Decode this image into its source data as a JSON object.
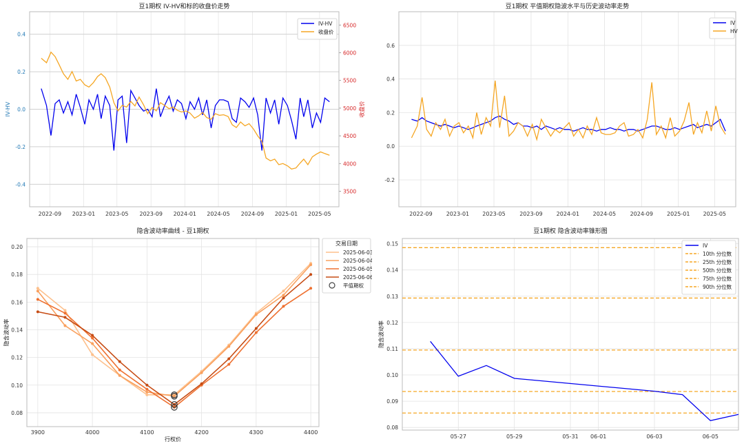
{
  "chart_data": [
    {
      "type": "line",
      "title": "豆1期权 IV-HV和标的收盘价走势",
      "xlabel": "",
      "ylabel": "IV-HV",
      "y2label": "收盘价",
      "x_ticks": [
        "2022-09",
        "2023-01",
        "2023-05",
        "2023-09",
        "2024-01",
        "2024-05",
        "2024-09",
        "2025-01",
        "2025-05"
      ],
      "ylim": [
        -0.52,
        0.52
      ],
      "y_ticks": [
        "-0.4",
        "-0.2",
        "0.0",
        "0.2",
        "0.4"
      ],
      "y2lim": [
        3220,
        6740
      ],
      "y2_ticks": [
        "3500",
        "4000",
        "4500",
        "5000",
        "5500",
        "6000",
        "6500"
      ],
      "grid": true,
      "legend": "top-right",
      "series": [
        {
          "name": "IV-HV",
          "axis": "left",
          "color": "#0000ee",
          "x": [
            "2022-08-01",
            "2022-08-20",
            "2022-09-05",
            "2022-09-20",
            "2022-10-05",
            "2022-10-20",
            "2022-11-05",
            "2022-11-20",
            "2022-12-05",
            "2022-12-20",
            "2023-01-05",
            "2023-01-20",
            "2023-02-05",
            "2023-02-20",
            "2023-03-05",
            "2023-03-20",
            "2023-04-05",
            "2023-04-20",
            "2023-05-05",
            "2023-05-20",
            "2023-06-05",
            "2023-06-20",
            "2023-07-05",
            "2023-07-20",
            "2023-08-05",
            "2023-08-20",
            "2023-09-05",
            "2023-09-20",
            "2023-10-05",
            "2023-10-20",
            "2023-11-05",
            "2023-11-20",
            "2023-12-05",
            "2023-12-20",
            "2024-01-05",
            "2024-01-20",
            "2024-02-05",
            "2024-02-20",
            "2024-03-05",
            "2024-03-20",
            "2024-04-05",
            "2024-04-20",
            "2024-05-05",
            "2024-05-20",
            "2024-06-05",
            "2024-06-20",
            "2024-07-05",
            "2024-07-20",
            "2024-08-05",
            "2024-08-20",
            "2024-09-05",
            "2024-09-20",
            "2024-10-05",
            "2024-10-20",
            "2024-11-05",
            "2024-11-20",
            "2024-12-05",
            "2024-12-20",
            "2025-01-05",
            "2025-01-20",
            "2025-02-05",
            "2025-02-20",
            "2025-03-05",
            "2025-03-20",
            "2025-04-05",
            "2025-04-20",
            "2025-05-05",
            "2025-05-20",
            "2025-06-06"
          ],
          "values": [
            0.11,
            0.02,
            -0.14,
            0.03,
            0.05,
            -0.02,
            0.04,
            -0.03,
            0.08,
            0.01,
            -0.08,
            0.05,
            0.0,
            0.08,
            -0.05,
            0.07,
            0.02,
            -0.22,
            0.05,
            0.07,
            -0.18,
            0.1,
            0.06,
            0.02,
            -0.01,
            0.0,
            -0.04,
            0.11,
            -0.04,
            0.02,
            0.07,
            -0.01,
            0.05,
            0.03,
            -0.05,
            0.04,
            0.0,
            0.06,
            -0.03,
            0.05,
            -0.1,
            0.02,
            0.05,
            0.05,
            0.04,
            -0.05,
            -0.07,
            0.06,
            0.04,
            0.01,
            0.06,
            -0.03,
            -0.22,
            0.06,
            -0.02,
            0.05,
            -0.08,
            0.06,
            0.02,
            -0.06,
            -0.16,
            0.06,
            -0.04,
            0.05,
            -0.1,
            -0.02,
            -0.07,
            0.06,
            0.04
          ]
        },
        {
          "name": "收盘价",
          "axis": "right",
          "color": "#f5a623",
          "x": [
            "2022-08-01",
            "2022-08-20",
            "2022-09-05",
            "2022-09-20",
            "2022-10-05",
            "2022-10-20",
            "2022-11-05",
            "2022-11-20",
            "2022-12-05",
            "2022-12-20",
            "2023-01-05",
            "2023-01-20",
            "2023-02-05",
            "2023-02-20",
            "2023-03-05",
            "2023-03-20",
            "2023-04-05",
            "2023-04-20",
            "2023-05-05",
            "2023-05-20",
            "2023-06-05",
            "2023-06-20",
            "2023-07-05",
            "2023-07-20",
            "2023-08-05",
            "2023-08-20",
            "2023-09-05",
            "2023-09-20",
            "2023-10-05",
            "2023-10-20",
            "2023-11-05",
            "2023-11-20",
            "2023-12-05",
            "2023-12-20",
            "2024-01-05",
            "2024-01-20",
            "2024-02-05",
            "2024-02-20",
            "2024-03-05",
            "2024-03-20",
            "2024-04-05",
            "2024-04-20",
            "2024-05-05",
            "2024-05-20",
            "2024-06-05",
            "2024-06-20",
            "2024-07-05",
            "2024-07-20",
            "2024-08-05",
            "2024-08-20",
            "2024-09-05",
            "2024-09-20",
            "2024-10-05",
            "2024-10-20",
            "2024-11-05",
            "2024-11-20",
            "2024-12-05",
            "2024-12-20",
            "2025-01-05",
            "2025-01-20",
            "2025-02-05",
            "2025-02-20",
            "2025-03-05",
            "2025-03-20",
            "2025-04-05",
            "2025-04-20",
            "2025-05-05",
            "2025-05-20",
            "2025-06-06"
          ],
          "values": [
            5900,
            5820,
            6010,
            5930,
            5780,
            5620,
            5520,
            5660,
            5490,
            5520,
            5420,
            5380,
            5460,
            5570,
            5620,
            5550,
            5380,
            5100,
            4950,
            5050,
            5020,
            5120,
            5040,
            5200,
            5060,
            4900,
            5010,
            4950,
            5100,
            5050,
            4990,
            5020,
            4960,
            4930,
            4950,
            4910,
            4820,
            4860,
            4920,
            4830,
            4800,
            4900,
            4870,
            4880,
            4850,
            4700,
            4650,
            4750,
            4680,
            4720,
            4620,
            4500,
            4400,
            4100,
            4050,
            4080,
            3980,
            4000,
            3960,
            3900,
            3920,
            4010,
            4080,
            3980,
            4120,
            4170,
            4210,
            4180,
            4150
          ]
        }
      ]
    },
    {
      "type": "line",
      "title": "豆1期权 平值期权隐波水平与历史波动率走势",
      "xlabel": "",
      "ylabel": "",
      "x_ticks": [
        "2022-09",
        "2023-01",
        "2023-05",
        "2023-09",
        "2024-01",
        "2024-05",
        "2024-09",
        "2025-01",
        "2025-05"
      ],
      "ylim": [
        -0.36,
        0.8
      ],
      "y_ticks": [
        "-0.2",
        "0.0",
        "0.2",
        "0.4",
        "0.6"
      ],
      "grid": true,
      "legend": "top-right",
      "series": [
        {
          "name": "IV",
          "color": "#0000ee",
          "x": [
            "2022-08-01",
            "2022-08-20",
            "2022-09-05",
            "2022-09-20",
            "2022-10-05",
            "2022-10-20",
            "2022-11-05",
            "2022-11-20",
            "2022-12-05",
            "2022-12-20",
            "2023-01-05",
            "2023-01-20",
            "2023-02-05",
            "2023-02-20",
            "2023-03-05",
            "2023-03-20",
            "2023-04-05",
            "2023-04-20",
            "2023-05-05",
            "2023-05-20",
            "2023-06-05",
            "2023-06-20",
            "2023-07-05",
            "2023-07-20",
            "2023-08-05",
            "2023-08-20",
            "2023-09-05",
            "2023-09-20",
            "2023-10-05",
            "2023-10-20",
            "2023-11-05",
            "2023-11-20",
            "2023-12-05",
            "2023-12-20",
            "2024-01-05",
            "2024-01-20",
            "2024-02-05",
            "2024-02-20",
            "2024-03-05",
            "2024-03-20",
            "2024-04-05",
            "2024-04-20",
            "2024-05-05",
            "2024-05-20",
            "2024-06-05",
            "2024-06-20",
            "2024-07-05",
            "2024-07-20",
            "2024-08-05",
            "2024-08-20",
            "2024-09-05",
            "2024-09-20",
            "2024-10-05",
            "2024-10-20",
            "2024-11-05",
            "2024-11-20",
            "2024-12-05",
            "2024-12-20",
            "2025-01-05",
            "2025-01-20",
            "2025-02-05",
            "2025-02-20",
            "2025-03-05",
            "2025-03-20",
            "2025-04-05",
            "2025-04-20",
            "2025-05-05",
            "2025-05-20",
            "2025-06-06"
          ],
          "values": [
            0.16,
            0.15,
            0.17,
            0.15,
            0.14,
            0.13,
            0.12,
            0.13,
            0.12,
            0.11,
            0.12,
            0.11,
            0.1,
            0.11,
            0.12,
            0.13,
            0.14,
            0.15,
            0.17,
            0.18,
            0.16,
            0.15,
            0.13,
            0.14,
            0.12,
            0.12,
            0.11,
            0.12,
            0.1,
            0.12,
            0.11,
            0.1,
            0.11,
            0.1,
            0.1,
            0.09,
            0.1,
            0.11,
            0.1,
            0.1,
            0.09,
            0.1,
            0.1,
            0.11,
            0.1,
            0.1,
            0.09,
            0.1,
            0.1,
            0.09,
            0.1,
            0.11,
            0.12,
            0.12,
            0.11,
            0.1,
            0.1,
            0.11,
            0.1,
            0.11,
            0.12,
            0.13,
            0.11,
            0.12,
            0.13,
            0.12,
            0.14,
            0.16,
            0.09
          ]
        },
        {
          "name": "HV",
          "color": "#f5a623",
          "x": [
            "2022-08-01",
            "2022-08-20",
            "2022-09-05",
            "2022-09-20",
            "2022-10-05",
            "2022-10-20",
            "2022-11-05",
            "2022-11-20",
            "2022-12-05",
            "2022-12-20",
            "2023-01-05",
            "2023-01-20",
            "2023-02-05",
            "2023-02-20",
            "2023-03-05",
            "2023-03-20",
            "2023-04-05",
            "2023-04-20",
            "2023-05-05",
            "2023-05-20",
            "2023-06-05",
            "2023-06-20",
            "2023-07-05",
            "2023-07-20",
            "2023-08-05",
            "2023-08-20",
            "2023-09-05",
            "2023-09-20",
            "2023-10-05",
            "2023-10-20",
            "2023-11-05",
            "2023-11-20",
            "2023-12-05",
            "2023-12-20",
            "2024-01-05",
            "2024-01-20",
            "2024-02-05",
            "2024-02-20",
            "2024-03-05",
            "2024-03-20",
            "2024-04-05",
            "2024-04-20",
            "2024-05-05",
            "2024-05-20",
            "2024-06-05",
            "2024-06-20",
            "2024-07-05",
            "2024-07-20",
            "2024-08-05",
            "2024-08-20",
            "2024-09-05",
            "2024-09-20",
            "2024-10-05",
            "2024-10-20",
            "2024-11-05",
            "2024-11-20",
            "2024-12-05",
            "2024-12-20",
            "2025-01-05",
            "2025-01-20",
            "2025-02-05",
            "2025-02-20",
            "2025-03-05",
            "2025-03-20",
            "2025-04-05",
            "2025-04-20",
            "2025-05-05",
            "2025-05-20",
            "2025-06-06"
          ],
          "values": [
            0.05,
            0.12,
            0.29,
            0.1,
            0.06,
            0.14,
            0.1,
            0.16,
            0.06,
            0.12,
            0.14,
            0.08,
            0.12,
            0.05,
            0.2,
            0.07,
            0.17,
            0.12,
            0.39,
            0.11,
            0.3,
            0.06,
            0.09,
            0.14,
            0.12,
            0.06,
            0.13,
            0.04,
            0.16,
            0.11,
            0.06,
            0.1,
            0.08,
            0.11,
            0.14,
            0.06,
            0.1,
            0.05,
            0.12,
            0.07,
            0.17,
            0.08,
            0.07,
            0.07,
            0.08,
            0.12,
            0.14,
            0.06,
            0.07,
            0.1,
            0.05,
            0.16,
            0.38,
            0.07,
            0.12,
            0.05,
            0.17,
            0.06,
            0.09,
            0.15,
            0.26,
            0.07,
            0.14,
            0.08,
            0.21,
            0.09,
            0.24,
            0.12,
            0.07
          ]
        }
      ]
    },
    {
      "type": "line",
      "title": "隐含波动率曲线 - 豆1期权",
      "xlabel": "行权价",
      "ylabel": "隐含波动率",
      "x": [
        3900,
        3950,
        4000,
        4050,
        4100,
        4150,
        4200,
        4250,
        4300,
        4350,
        4400
      ],
      "xlim": [
        3880,
        4415
      ],
      "x_ticks": [
        "3900",
        "4000",
        "4100",
        "4200",
        "4300",
        "4400"
      ],
      "ylim": [
        0.07,
        0.206
      ],
      "y_ticks": [
        "0.08",
        "0.10",
        "0.12",
        "0.14",
        "0.16",
        "0.18",
        "0.20"
      ],
      "legend_title": "交易日期",
      "legend": "top-right",
      "atm_label": "平值期权",
      "atm_strike": 4150,
      "grid": true,
      "series": [
        {
          "name": "2025-06-03",
          "color": "#fdc08c",
          "values": [
            0.17,
            0.154,
            0.122,
            0.107,
            0.093,
            0.093,
            0.11,
            0.129,
            0.152,
            0.168,
            0.188
          ]
        },
        {
          "name": "2025-06-04",
          "color": "#f9a05e",
          "values": [
            0.168,
            0.143,
            0.13,
            0.107,
            0.095,
            0.092,
            0.109,
            0.128,
            0.151,
            0.165,
            0.187
          ]
        },
        {
          "name": "2025-06-05",
          "color": "#ee7030",
          "values": [
            0.162,
            0.152,
            0.134,
            0.111,
            0.097,
            0.084,
            0.1,
            0.115,
            0.138,
            0.157,
            0.17
          ]
        },
        {
          "name": "2025-06-06",
          "color": "#c64b13",
          "values": [
            0.153,
            0.149,
            0.136,
            0.117,
            0.1,
            0.086,
            0.101,
            0.119,
            0.141,
            0.163,
            0.18
          ]
        }
      ]
    },
    {
      "type": "line",
      "title": "豆1期权 隐含波动率锥形图",
      "xlabel": "",
      "ylabel": "隐含波动率",
      "x_ticks": [
        "05-27",
        "05-29",
        "05-31",
        "06-01",
        "06-03",
        "06-05"
      ],
      "x_tick_dates": [
        "2025-05-27",
        "2025-05-29",
        "2025-05-31",
        "2025-06-01",
        "2025-06-03",
        "2025-06-05"
      ],
      "xlim": [
        "2025-05-25",
        "2025-06-06"
      ],
      "ylim": [
        0.079,
        0.152
      ],
      "y_ticks": [
        "0.08",
        "0.09",
        "0.10",
        "0.11",
        "0.12",
        "0.13",
        "0.14",
        "0.15"
      ],
      "grid": true,
      "legend": "top-right",
      "series": [
        {
          "name": "IV",
          "color": "#0000ee",
          "x": [
            "2025-05-26",
            "2025-05-27",
            "2025-05-28",
            "2025-05-29",
            "2025-06-03",
            "2025-06-04",
            "2025-06-05",
            "2025-06-06"
          ],
          "values": [
            0.1128,
            0.0995,
            0.1036,
            0.0987,
            0.0938,
            0.0925,
            0.0826,
            0.085
          ]
        }
      ],
      "percentiles": [
        {
          "name": "10th 分位数",
          "value": 0.0855,
          "color": "#f5a623"
        },
        {
          "name": "25th 分位数",
          "value": 0.0937,
          "color": "#f5a623"
        },
        {
          "name": "50th 分位数",
          "value": 0.1095,
          "color": "#f5a623"
        },
        {
          "name": "75th 分位数",
          "value": 0.1293,
          "color": "#f5a623"
        },
        {
          "name": "90th 分位数",
          "value": 0.1485,
          "color": "#f5a623"
        }
      ]
    }
  ]
}
